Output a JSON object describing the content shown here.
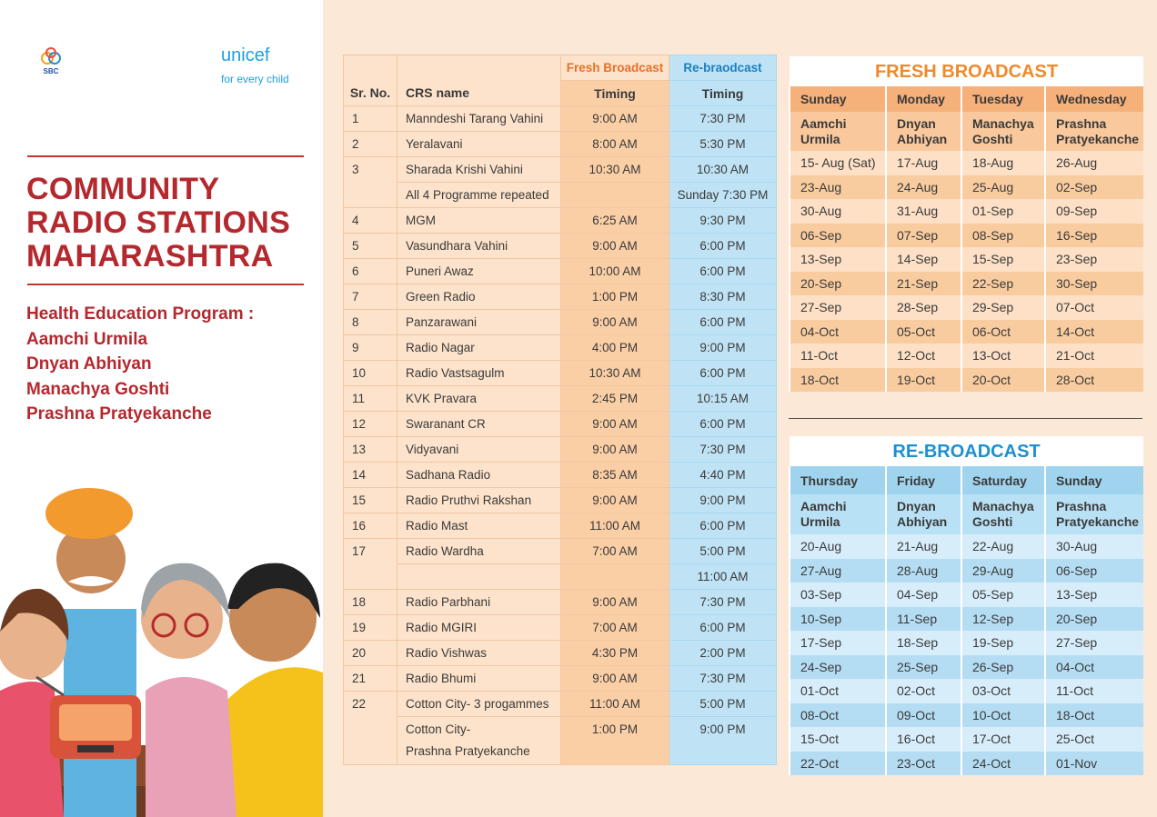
{
  "logos": {
    "sbc": "SBC",
    "unicef": "unicef",
    "tagline": "for every child"
  },
  "title": [
    "COMMUNITY",
    "RADIO STATIONS",
    "MAHARASHTRA"
  ],
  "program": {
    "heading": "Health Education Program :",
    "names": [
      "Aamchi Urmila",
      "Dnyan Abhiyan",
      "Manachya Goshti",
      "Prashna Pratyekanche"
    ]
  },
  "schedule": {
    "headers": {
      "sr": "Sr. No.",
      "name": "CRS name",
      "fresh": "Fresh Broadcast",
      "re": "Re-braodcast",
      "fresh_timing": "Timing",
      "re_timing": "Timing"
    },
    "rows": [
      {
        "sr": "1",
        "entries": [
          {
            "name": "Manndeshi Tarang Vahini",
            "fresh": "9:00 AM",
            "re": "7:30 PM"
          }
        ]
      },
      {
        "sr": "2",
        "entries": [
          {
            "name": "Yeralavani",
            "fresh": "8:00 AM",
            "re": "5:30 PM"
          }
        ]
      },
      {
        "sr": "3",
        "entries": [
          {
            "name": "Sharada Krishi Vahini",
            "fresh": "10:30 AM",
            "re": "10:30 AM"
          },
          {
            "name": "All 4 Programme repeated",
            "re": "Sunday 7:30 PM"
          }
        ]
      },
      {
        "sr": "4",
        "entries": [
          {
            "name": "MGM",
            "fresh": "6:25 AM",
            "re": "9:30 PM"
          }
        ]
      },
      {
        "sr": "5",
        "entries": [
          {
            "name": "Vasundhara Vahini",
            "fresh": "9:00 AM",
            "re": "6:00 PM"
          }
        ]
      },
      {
        "sr": "6",
        "entries": [
          {
            "name": "Puneri Awaz",
            "fresh": "10:00 AM",
            "re": "6:00 PM"
          }
        ]
      },
      {
        "sr": "7",
        "entries": [
          {
            "name": "Green Radio",
            "fresh": "1:00 PM",
            "re": "8:30 PM"
          }
        ]
      },
      {
        "sr": "8",
        "entries": [
          {
            "name": "Panzarawani",
            "fresh": "9:00 AM",
            "re": "6:00 PM"
          }
        ]
      },
      {
        "sr": "9",
        "entries": [
          {
            "name": "Radio Nagar",
            "fresh": "4:00 PM",
            "re": "9:00 PM"
          }
        ]
      },
      {
        "sr": "10",
        "entries": [
          {
            "name": "Radio Vastsagulm",
            "fresh": "10:30 AM",
            "re": "6:00 PM"
          }
        ]
      },
      {
        "sr": "11",
        "entries": [
          {
            "name": "KVK Pravara",
            "fresh": "2:45 PM",
            "re": "10:15 AM"
          }
        ]
      },
      {
        "sr": "12",
        "entries": [
          {
            "name": "Swaranant CR",
            "fresh": "9:00 AM",
            "re": "6:00 PM"
          }
        ]
      },
      {
        "sr": "13",
        "entries": [
          {
            "name": "Vidyavani",
            "fresh": "9:00 AM",
            "re": "7:30 PM"
          }
        ]
      },
      {
        "sr": "14",
        "entries": [
          {
            "name": "Sadhana Radio",
            "fresh": "8:35 AM",
            "re": "4:40 PM"
          }
        ]
      },
      {
        "sr": "15",
        "entries": [
          {
            "name": "Radio Pruthvi Rakshan",
            "fresh": "9:00 AM",
            "re": "9:00 PM"
          }
        ]
      },
      {
        "sr": "16",
        "entries": [
          {
            "name": "Radio Mast",
            "fresh": "11:00 AM",
            "re": "6:00 PM"
          }
        ]
      },
      {
        "sr": "17",
        "entries": [
          {
            "name": "Radio Wardha",
            "fresh": "7:00 AM",
            "re": "5:00 PM"
          },
          {
            "re": "11:00 AM"
          }
        ]
      },
      {
        "sr": "18",
        "entries": [
          {
            "name": "Radio Parbhani",
            "fresh": "9:00 AM",
            "re": "7:30 PM"
          }
        ]
      },
      {
        "sr": "19",
        "entries": [
          {
            "name": "Radio MGIRI",
            "fresh": "7:00 AM",
            "re": "6:00 PM"
          }
        ]
      },
      {
        "sr": "20",
        "entries": [
          {
            "name": "Radio Vishwas",
            "fresh": "4:30 PM",
            "re": "2:00 PM"
          }
        ]
      },
      {
        "sr": "21",
        "entries": [
          {
            "name": "Radio Bhumi",
            "fresh": "9:00 AM",
            "re": "7:30 PM"
          }
        ]
      },
      {
        "sr": "22",
        "entries": [
          {
            "name": "Cotton City- 3 progammes",
            "fresh": "11:00 AM",
            "re": "5:00 PM"
          },
          {
            "name": "Cotton City-\nPrashna Pratyekanche",
            "fresh": "1:00 PM",
            "re": "9:00 PM"
          }
        ]
      }
    ]
  },
  "fresh_broadcast": {
    "title": "FRESH BROADCAST",
    "days": [
      "Sunday",
      "Monday",
      "Tuesday",
      "Wednesday"
    ],
    "programs": [
      "Aamchi Urmila",
      "Dnyan Abhiyan",
      "Manachya Goshti",
      "Prashna Pratyekanche"
    ],
    "dates": [
      [
        "15- Aug (Sat)",
        "17-Aug",
        "18-Aug",
        "26-Aug"
      ],
      [
        "23-Aug",
        "24-Aug",
        "25-Aug",
        "02-Sep"
      ],
      [
        "30-Aug",
        "31-Aug",
        "01-Sep",
        "09-Sep"
      ],
      [
        "06-Sep",
        "07-Sep",
        "08-Sep",
        "16-Sep"
      ],
      [
        "13-Sep",
        "14-Sep",
        "15-Sep",
        "23-Sep"
      ],
      [
        "20-Sep",
        "21-Sep",
        "22-Sep",
        "30-Sep"
      ],
      [
        "27-Sep",
        "28-Sep",
        "29-Sep",
        "07-Oct"
      ],
      [
        "04-Oct",
        "05-Oct",
        "06-Oct",
        "14-Oct"
      ],
      [
        "11-Oct",
        "12-Oct",
        "13-Oct",
        "21-Oct"
      ],
      [
        "18-Oct",
        "19-Oct",
        "20-Oct",
        "28-Oct"
      ]
    ]
  },
  "re_broadcast": {
    "title": "RE-BROADCAST",
    "days": [
      "Thursday",
      "Friday",
      "Saturday",
      "Sunday"
    ],
    "programs": [
      "Aamchi Urmila",
      "Dnyan Abhiyan",
      "Manachya Goshti",
      "Prashna Pratyekanche"
    ],
    "dates": [
      [
        "20-Aug",
        "21-Aug",
        "22-Aug",
        "30-Aug"
      ],
      [
        "27-Aug",
        "28-Aug",
        "29-Aug",
        "06-Sep"
      ],
      [
        "03-Sep",
        "04-Sep",
        "05-Sep",
        "13-Sep"
      ],
      [
        "10-Sep",
        "11-Sep",
        "12-Sep",
        "20-Sep"
      ],
      [
        "17-Sep",
        "18-Sep",
        "19-Sep",
        "27-Sep"
      ],
      [
        "24-Sep",
        "25-Sep",
        "26-Sep",
        "04-Oct"
      ],
      [
        "01-Oct",
        "02-Oct",
        "03-Oct",
        "11-Oct"
      ],
      [
        "08-Oct",
        "09-Oct",
        "10-Oct",
        "18-Oct"
      ],
      [
        "15-Oct",
        "16-Oct",
        "17-Oct",
        "25-Oct"
      ],
      [
        "22-Oct",
        "23-Oct",
        "24-Oct",
        "01-Nov"
      ]
    ]
  }
}
